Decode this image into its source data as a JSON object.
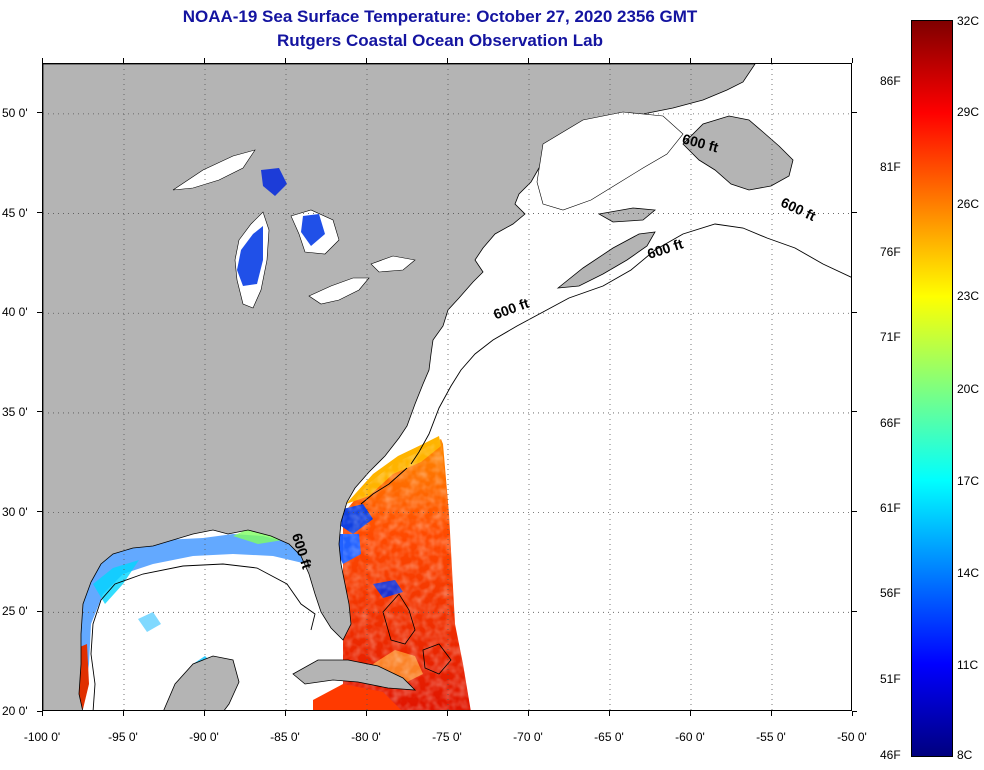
{
  "title": {
    "line1": "NOAA-19 Sea Surface Temperature:  October 27, 2020 2356 GMT",
    "line2": "Rutgers Coastal Ocean Observation Lab"
  },
  "map": {
    "lon_min": -100,
    "lon_max": -50,
    "lat_min": 20,
    "lat_max": 52.5,
    "lon_ticks": [
      -100,
      -95,
      -90,
      -85,
      -80,
      -75,
      -70,
      -65,
      -60,
      -55,
      -50
    ],
    "lon_tick_labels": [
      "-100 0'",
      "-95 0'",
      "-90 0'",
      "-85 0'",
      "-80 0'",
      "-75 0'",
      "-70 0'",
      "-65 0'",
      "-60 0'",
      "-55 0'",
      "-50 0'"
    ],
    "lat_ticks": [
      20,
      25,
      30,
      35,
      40,
      45,
      50
    ],
    "lat_tick_labels": [
      "20 0'",
      "25 0'",
      "30 0'",
      "35 0'",
      "40 0'",
      "45 0'",
      "50 0'"
    ],
    "grid": "dotted",
    "land_color": "#b4b4b4",
    "contour_label": "600 ft",
    "contour_labels": [
      {
        "text": "600 ft",
        "lon": -59.5,
        "lat": 48.3,
        "rotate": 15
      },
      {
        "text": "600 ft",
        "lon": -53.5,
        "lat": 45.0,
        "rotate": 25
      },
      {
        "text": "600 ft",
        "lon": -61.5,
        "lat": 43.0,
        "rotate": -18
      },
      {
        "text": "600 ft",
        "lon": -71.0,
        "lat": 40.0,
        "rotate": -20
      },
      {
        "text": "600 ft",
        "lon": -84.3,
        "lat": 28.0,
        "rotate": 72
      }
    ]
  },
  "colorbar": {
    "celsius_min": 8,
    "celsius_max": 32,
    "celsius_labels": [
      "32C",
      "29C",
      "26C",
      "23C",
      "20C",
      "17C",
      "14C",
      "11C",
      "8C"
    ],
    "fahrenheit_labels": [
      "86F",
      "81F",
      "76F",
      "71F",
      "66F",
      "61F",
      "56F",
      "51F",
      "46F"
    ],
    "fahrenheit_values": [
      86,
      81,
      76,
      71,
      66,
      61,
      56,
      51,
      46
    ],
    "colors": [
      "#00007f",
      "#0000ff",
      "#007fff",
      "#00ffff",
      "#7fff7f",
      "#ffff00",
      "#ff7f00",
      "#ff0000",
      "#7f0000"
    ]
  }
}
